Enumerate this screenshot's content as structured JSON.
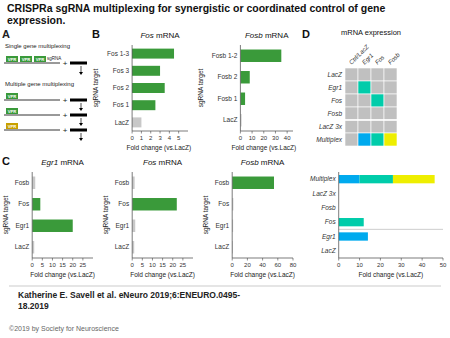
{
  "title": "CRISPRa sgRNA multiplexing for synergistic or coordinated control of gene expression.",
  "annotations": [
    "Katherine E. Savell et al. eNeuro 2019;6:ENEURO.0495-",
    "18.2019",
    "©2019 by Society for Neuroscience",
    "A",
    "Single gene multiplexing",
    "VPR",
    "sgRNA",
    "+",
    "Multiple gene multiplexing"
  ],
  "chart_data": [
    {
      "type": "bar",
      "orientation": "horizontal",
      "title": "Fos mRNA",
      "xlabel": "Fold change (vs.LacZ)",
      "ylabel": "sgRNA target",
      "categories": [
        "LacZ",
        "Fos 1",
        "Fos 2",
        "Fos 3",
        "Fos 1-3"
      ],
      "values": [
        1.0,
        2.5,
        3.5,
        3.0,
        4.5
      ],
      "colors": [
        "#c8c8c8",
        "#3a9a3a",
        "#3a9a3a",
        "#3a9a3a",
        "#3a9a3a"
      ],
      "xlim": [
        0,
        6
      ],
      "xticks": [
        0,
        1,
        2,
        3,
        4,
        5
      ],
      "annotations": [
        "B"
      ]
    },
    {
      "type": "bar",
      "orientation": "horizontal",
      "title": "Fosb mRNA",
      "xlabel": "Fold change (vs.LacZ)",
      "ylabel": "sgRNA target",
      "categories": [
        "LacZ",
        "Fosb 1",
        "Fosb 2",
        "Fosb 1-2"
      ],
      "values": [
        1.0,
        4.0,
        8.0,
        35.0
      ],
      "colors": [
        "#c8c8c8",
        "#3a9a3a",
        "#3a9a3a",
        "#3a9a3a"
      ],
      "xlim": [
        0,
        45
      ],
      "xticks": [
        0,
        10,
        20,
        30,
        40
      ]
    },
    {
      "type": "bar",
      "orientation": "horizontal",
      "title": "Egr1 mRNA",
      "xlabel": "Fold change (vs.LacZ)",
      "ylabel": "sgRNA target",
      "categories": [
        "LacZ",
        "Egr1",
        "Fos",
        "Fosb"
      ],
      "values": [
        1.0,
        20.0,
        4.0,
        1.5
      ],
      "colors": [
        "#c8c8c8",
        "#3a9a3a",
        "#3a9a3a",
        "#c8c8c8"
      ],
      "xlim": [
        0,
        30
      ],
      "xticks": [
        0,
        5,
        10,
        15,
        20,
        25
      ],
      "annotations": [
        "C"
      ]
    },
    {
      "type": "bar",
      "orientation": "horizontal",
      "title": "Fos mRNA",
      "xlabel": "Fold change (vs.LacZ)",
      "ylabel": "sgRNA target",
      "categories": [
        "LacZ",
        "Egr1",
        "Fos",
        "Fosb"
      ],
      "values": [
        1.0,
        1.5,
        22.0,
        1.2
      ],
      "colors": [
        "#c8c8c8",
        "#c8c8c8",
        "#3a9a3a",
        "#c8c8c8"
      ],
      "xlim": [
        0,
        30
      ],
      "xticks": [
        0,
        5,
        10,
        15,
        20,
        25
      ]
    },
    {
      "type": "bar",
      "orientation": "horizontal",
      "title": "Fosb mRNA",
      "xlabel": "Fold change (vs.LacZ)",
      "ylabel": "sgRNA target",
      "categories": [
        "LacZ",
        "Egr1",
        "Fos",
        "Fosb"
      ],
      "values": [
        1.0,
        1.2,
        1.5,
        55.0
      ],
      "colors": [
        "#c8c8c8",
        "#c8c8c8",
        "#c8c8c8",
        "#3a9a3a"
      ],
      "xlim": [
        0,
        80
      ],
      "xticks": [
        0,
        20,
        40,
        60,
        80
      ]
    },
    {
      "type": "heatmap",
      "title": "mRNA expression",
      "annotations": [
        "D"
      ],
      "categories": [
        "Ctrl/LacZ",
        "Egr1",
        "Fos",
        "Fosb"
      ],
      "rows": [
        "LacZ",
        "Egr1",
        "Fos",
        "Fosb",
        "LacZ 3x",
        "Multiplex"
      ],
      "values": [
        [
          0,
          0,
          0,
          0
        ],
        [
          0,
          14,
          0,
          0
        ],
        [
          0,
          0,
          12,
          0
        ],
        [
          0,
          0,
          0,
          0
        ],
        [
          0,
          0,
          0,
          0
        ],
        [
          0,
          10,
          16,
          20
        ]
      ],
      "colors": [
        [
          "#c0c0c0",
          "#c0c0c0",
          "#c0c0c0",
          "#c0c0c0"
        ],
        [
          "#c0c0c0",
          "#00ccaa",
          "#c0c0c0",
          "#c0c0c0"
        ],
        [
          "#c0c0c0",
          "#c0c0c0",
          "#00ccaa",
          "#c0c0c0"
        ],
        [
          "#c0c0c0",
          "#c0c0c0",
          "#c0c0c0",
          "#c0c0c0"
        ],
        [
          "#c0c0c0",
          "#c0c0c0",
          "#c0c0c0",
          "#c0c0c0"
        ],
        [
          "#c0c0c0",
          "#00aaee",
          "#00ccaa",
          "#eeee00"
        ]
      ]
    },
    {
      "type": "bar",
      "orientation": "horizontal",
      "stacked": true,
      "xlabel": "Fold change (vs.LacZ)",
      "categories": [
        "LacZ",
        "Egr1",
        "Fos",
        "Fosb",
        "LacZ 3x",
        "Multiplex"
      ],
      "series": [
        {
          "color": "#c0c0c0",
          "values": [
            0,
            0,
            0,
            0,
            0,
            0
          ]
        },
        {
          "color": "#00aaee",
          "values": [
            0,
            14,
            0,
            0,
            0,
            10
          ]
        },
        {
          "color": "#00ccaa",
          "values": [
            0,
            0,
            12,
            0,
            0,
            16
          ]
        },
        {
          "color": "#eeee00",
          "values": [
            0,
            0,
            0,
            0,
            0,
            20
          ]
        }
      ],
      "xlim": [
        0,
        50
      ],
      "xticks": [
        0,
        10,
        20,
        30,
        40,
        50
      ]
    }
  ]
}
